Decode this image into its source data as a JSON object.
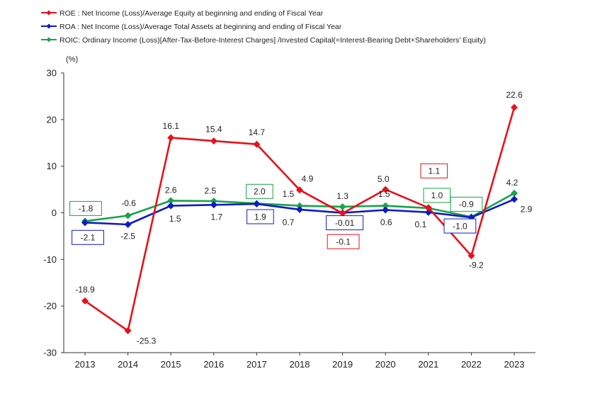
{
  "chart_data": {
    "type": "line",
    "categories": [
      "2013",
      "2014",
      "2015",
      "2016",
      "2017",
      "2018",
      "2019",
      "2020",
      "2021",
      "2022",
      "2023"
    ],
    "ylabel": "(%)",
    "ylim": [
      -30,
      30
    ],
    "yticks": [
      30,
      20,
      10,
      0,
      -10,
      -20,
      -30
    ],
    "grid": false,
    "legend_position": "top-left",
    "series": [
      {
        "name": "ROE : Net Income (Loss)/Average Equity at beginning and ending of Fiscal Year",
        "color": "#e8111a",
        "marker": "diamond",
        "values": [
          -18.9,
          -25.3,
          16.1,
          15.4,
          14.7,
          4.9,
          -0.1,
          5.0,
          1.1,
          -9.2,
          22.6
        ],
        "labels": [
          "-18.9",
          "-25.3",
          "16.1",
          "15.4",
          "14.7",
          "4.9",
          "-0.1",
          "5.0",
          "1.1",
          "-9.2",
          "22.6"
        ],
        "boxed": [
          false,
          false,
          false,
          false,
          false,
          false,
          true,
          false,
          true,
          false,
          false
        ]
      },
      {
        "name": "ROA : Net Income (Loss)/Average Total Assets at beginning and ending of Fiscal Year",
        "color": "#1019c8",
        "marker": "diamond",
        "values": [
          -2.1,
          -2.5,
          1.5,
          1.7,
          1.9,
          0.7,
          -0.01,
          0.6,
          0.1,
          -1.0,
          2.9
        ],
        "labels": [
          "-2.1",
          "-2.5",
          "1.5",
          "1.7",
          "1.9",
          "0.7",
          "-0.01",
          "0.6",
          "0.1",
          "-1.0",
          "2.9"
        ],
        "boxed": [
          true,
          false,
          false,
          false,
          true,
          false,
          true,
          false,
          false,
          true,
          false
        ]
      },
      {
        "name": "ROIC: Ordinary Income (Loss)[After-Tax-Before-Interest Charges]  /Invested Capital(=Interest-Bearing Debt+Shareholders' Equity)",
        "color": "#18a24a",
        "marker": "diamond",
        "values": [
          -1.8,
          -0.6,
          2.6,
          2.5,
          2.0,
          1.5,
          1.3,
          1.5,
          1.0,
          -0.9,
          4.2
        ],
        "labels": [
          "-1.8",
          "-0.6",
          "2.6",
          "2.5",
          "2.0",
          "1.5",
          "1.3",
          "1.5",
          "1.0",
          "-0.9",
          "4.2"
        ],
        "boxed": [
          true,
          false,
          false,
          false,
          true,
          false,
          false,
          false,
          true,
          true,
          false
        ]
      }
    ]
  }
}
